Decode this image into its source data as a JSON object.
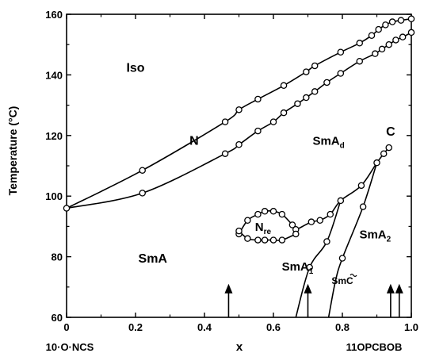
{
  "chart_data": {
    "type": "scatter",
    "title": "",
    "xlabel": "x",
    "ylabel": "Temperature  (°C)",
    "xlim": [
      0,
      1
    ],
    "ylim": [
      60,
      160
    ],
    "x_ticks": [
      "0",
      "0.2",
      "0.4",
      "0.6",
      "0.8",
      "1.0"
    ],
    "y_ticks": [
      "60",
      "80",
      "100",
      "120",
      "140",
      "160"
    ],
    "x_left_label": "10·O·NCS",
    "x_right_label": "11OPCBOB",
    "grid": false,
    "series": [
      {
        "values_x": [
          0.0,
          0.22,
          0.46,
          0.5,
          0.555,
          0.63,
          0.695,
          0.72,
          0.795,
          0.85,
          0.885,
          0.905,
          0.925,
          0.945,
          0.97,
          1.0
        ],
        "values_y": [
          96.0,
          108.5,
          124.5,
          128.5,
          132.0,
          136.5,
          141.0,
          143.0,
          147.5,
          150.5,
          153.0,
          155.0,
          156.5,
          157.5,
          158.0,
          158.5
        ]
      },
      {
        "values_x": [
          0.22,
          0.46,
          0.5,
          0.555,
          0.6,
          0.63,
          0.67,
          0.695,
          0.72,
          0.755,
          0.795,
          0.85,
          0.895,
          0.915,
          0.935,
          0.955,
          0.975,
          1.0
        ],
        "values_y": [
          101.0,
          114.0,
          117.0,
          121.5,
          124.5,
          127.5,
          130.5,
          132.5,
          134.5,
          137.5,
          140.5,
          144.5,
          147.0,
          148.5,
          150.0,
          151.5,
          152.5,
          154.0
        ]
      },
      {
        "values_x": [
          0.5,
          0.525,
          0.555,
          0.575,
          0.6,
          0.625,
          0.655,
          0.665,
          0.71,
          0.735,
          0.765,
          0.795,
          0.855,
          0.9,
          0.92,
          0.935
        ],
        "values_y": [
          87.5,
          92.0,
          94.0,
          95.0,
          95.0,
          94.0,
          90.5,
          89.0,
          91.5,
          92.0,
          94.0,
          98.5,
          103.5,
          111.0,
          114.0,
          116.0
        ]
      },
      {
        "values_x": [
          0.5,
          0.525,
          0.555,
          0.575,
          0.6,
          0.625,
          0.665
        ],
        "values_y": [
          88.5,
          86.0,
          85.5,
          85.5,
          85.5,
          85.5,
          87.5
        ]
      },
      {
        "values_x": [
          0.705,
          0.755
        ],
        "values_y": [
          76.5,
          85.0
        ]
      },
      {
        "values_x": [
          0.8,
          0.86
        ],
        "values_y": [
          79.5,
          96.5
        ]
      }
    ],
    "phase_labels": [
      {
        "text": "Iso",
        "x": 0.2,
        "y": 141
      },
      {
        "text": "N",
        "x": 0.37,
        "y": 117
      },
      {
        "text": "SmA",
        "x": 0.25,
        "y": 78
      },
      {
        "text": "C",
        "x": 0.94,
        "y": 120
      }
    ],
    "phase_labels_sub": [
      {
        "text": "SmA",
        "sub": "d",
        "x": 0.76,
        "y": 117
      },
      {
        "text": "N",
        "sub": "re",
        "x": 0.57,
        "y": 88.5
      },
      {
        "text": "SmA",
        "sub": "1",
        "x": 0.67,
        "y": 75.5
      },
      {
        "text": "SmA",
        "sub": "2",
        "x": 0.895,
        "y": 86
      }
    ],
    "phase_labels_tilde": [
      {
        "text": "SmC",
        "x": 0.8,
        "y": 71
      }
    ],
    "arrows_x": [
      0.47,
      0.7,
      0.94,
      0.965
    ]
  }
}
